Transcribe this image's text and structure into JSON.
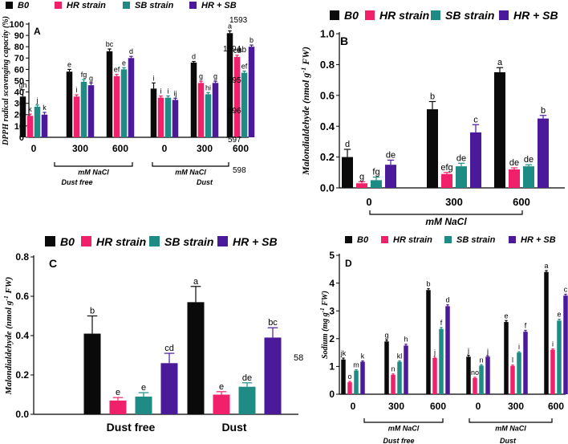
{
  "colors": {
    "B0": "#0a0a0a",
    "HR strain": "#f0206a",
    "SB strain": "#1e8c84",
    "HR + SB": "#4a1a9a"
  },
  "series_names": [
    "B0",
    "HR strain",
    "SB strain",
    "HR + SB"
  ],
  "chart_data": [
    {
      "panel": "A",
      "type": "bar",
      "ylabel": "DPPH radical scavenging capacity (%)",
      "ylim": [
        0,
        100
      ],
      "yticks": [
        0,
        10,
        20,
        30,
        40,
        50,
        60,
        70,
        80,
        90,
        100
      ],
      "categories": [
        "0",
        "300",
        "600",
        "0",
        "300",
        "600"
      ],
      "group_axis_label": "mM NaCl",
      "groups": [
        "Dust free",
        "Dust"
      ],
      "series": [
        {
          "name": "B0",
          "values": [
            36,
            58,
            76,
            43,
            66,
            92
          ],
          "errors": [
            6,
            2,
            2,
            5,
            1,
            2
          ],
          "letters": [
            "gh",
            "e",
            "bc",
            "i",
            "d",
            "a"
          ]
        },
        {
          "name": "HR strain",
          "values": [
            19,
            36,
            54,
            35,
            48,
            71
          ],
          "errors": [
            1.5,
            1.5,
            1.5,
            1.5,
            1.5,
            1.5
          ],
          "letters": [
            "k",
            "i",
            "ef",
            "i",
            "g",
            "cd"
          ]
        },
        {
          "name": "SB strain",
          "values": [
            27,
            49,
            60,
            35,
            38,
            57
          ],
          "errors": [
            1.5,
            2,
            1.5,
            1.5,
            1.5,
            1.5
          ],
          "letters": [
            "j",
            "fg",
            "e",
            "i",
            "hi",
            "ef"
          ]
        },
        {
          "name": "HR + SB",
          "values": [
            20,
            46,
            70,
            33,
            48,
            80
          ],
          "errors": [
            2,
            2,
            1.5,
            1.5,
            1.5,
            1.5
          ],
          "letters": [
            "k",
            "g",
            "d",
            "ij",
            "g",
            "b"
          ]
        }
      ],
      "stray_labels": [
        "1593",
        "1594",
        "595",
        "596",
        "597",
        "598",
        "ab"
      ]
    },
    {
      "panel": "B",
      "type": "bar",
      "ylabel": "Malondialdehyde (nmol g-1 FW)",
      "ylim": [
        0,
        1.0
      ],
      "yticks": [
        "0.0",
        "0.2",
        "0.4",
        "0.6",
        "0.8",
        "1.0"
      ],
      "categories": [
        "0",
        "300",
        "600"
      ],
      "group_axis_label": "mM NaCl",
      "series": [
        {
          "name": "B0",
          "values": [
            0.2,
            0.51,
            0.75
          ],
          "errors": [
            0.05,
            0.05,
            0.03
          ],
          "letters": [
            "d",
            "b",
            "a"
          ]
        },
        {
          "name": "HR strain",
          "values": [
            0.03,
            0.09,
            0.12
          ],
          "errors": [
            0.01,
            0.01,
            0.01
          ],
          "letters": [
            "g",
            "efg",
            "de"
          ]
        },
        {
          "name": "SB strain",
          "values": [
            0.05,
            0.14,
            0.14
          ],
          "errors": [
            0.02,
            0.02,
            0.01
          ],
          "letters": [
            "fg",
            "de",
            "de"
          ]
        },
        {
          "name": "HR + SB",
          "values": [
            0.15,
            0.36,
            0.45
          ],
          "errors": [
            0.03,
            0.05,
            0.02
          ],
          "letters": [
            "de",
            "c",
            "b"
          ]
        }
      ]
    },
    {
      "panel": "C",
      "type": "bar",
      "ylabel": "Malondialdehyde (nmol g-1 FW)",
      "ylim": [
        0,
        0.8
      ],
      "yticks": [
        "0.0",
        "0.2",
        "0.4",
        "0.6",
        "0.8"
      ],
      "categories": [
        "Dust free",
        "Dust"
      ],
      "series": [
        {
          "name": "B0",
          "values": [
            0.41,
            0.57
          ],
          "errors": [
            0.09,
            0.08
          ],
          "letters": [
            "b",
            "a"
          ]
        },
        {
          "name": "HR strain",
          "values": [
            0.07,
            0.1
          ],
          "errors": [
            0.015,
            0.015
          ],
          "letters": [
            "e",
            "e"
          ]
        },
        {
          "name": "SB strain",
          "values": [
            0.09,
            0.14
          ],
          "errors": [
            0.02,
            0.02
          ],
          "letters": [
            "e",
            "de"
          ]
        },
        {
          "name": "HR + SB",
          "values": [
            0.26,
            0.39
          ],
          "errors": [
            0.05,
            0.05
          ],
          "letters": [
            "cd",
            "bc"
          ]
        }
      ],
      "stray_labels": [
        "58"
      ]
    },
    {
      "panel": "D",
      "type": "bar",
      "ylabel": "Sodium (mg g-1 FW)",
      "ylim": [
        0,
        5
      ],
      "yticks": [
        0,
        1,
        2,
        3,
        4,
        5
      ],
      "categories": [
        "0",
        "300",
        "600",
        "0",
        "300",
        "600"
      ],
      "group_axis_label": "mM NaCl",
      "groups": [
        "Dust free",
        "Dust"
      ],
      "series": [
        {
          "name": "B0",
          "values": [
            1.25,
            1.9,
            3.75,
            1.35,
            2.6,
            4.4
          ],
          "errors": [
            0.05,
            0.05,
            0.05,
            0.05,
            0.05,
            0.05
          ],
          "letters": [
            "jk",
            "g",
            "b",
            "j",
            "e",
            "a"
          ]
        },
        {
          "name": "HR strain",
          "values": [
            0.43,
            0.7,
            1.3,
            0.58,
            1.02,
            1.6
          ],
          "errors": [
            0.03,
            0.03,
            0.03,
            0.03,
            0.03,
            0.03
          ],
          "letters": [
            "o",
            "n",
            "j",
            "no",
            "l",
            "i"
          ]
        },
        {
          "name": "SB strain",
          "values": [
            0.85,
            1.17,
            2.35,
            1.03,
            1.5,
            2.65
          ],
          "errors": [
            0.03,
            0.03,
            0.05,
            0.03,
            0.03,
            0.05
          ],
          "letters": [
            "m",
            "kl",
            "f",
            "n",
            "i",
            "e"
          ]
        },
        {
          "name": "HR + SB",
          "values": [
            1.17,
            1.75,
            3.17,
            1.35,
            2.25,
            3.55
          ],
          "errors": [
            0.03,
            0.05,
            0.05,
            0.03,
            0.05,
            0.05
          ],
          "letters": [
            "k",
            "h",
            "d",
            "j",
            "f",
            "c"
          ]
        }
      ]
    }
  ]
}
